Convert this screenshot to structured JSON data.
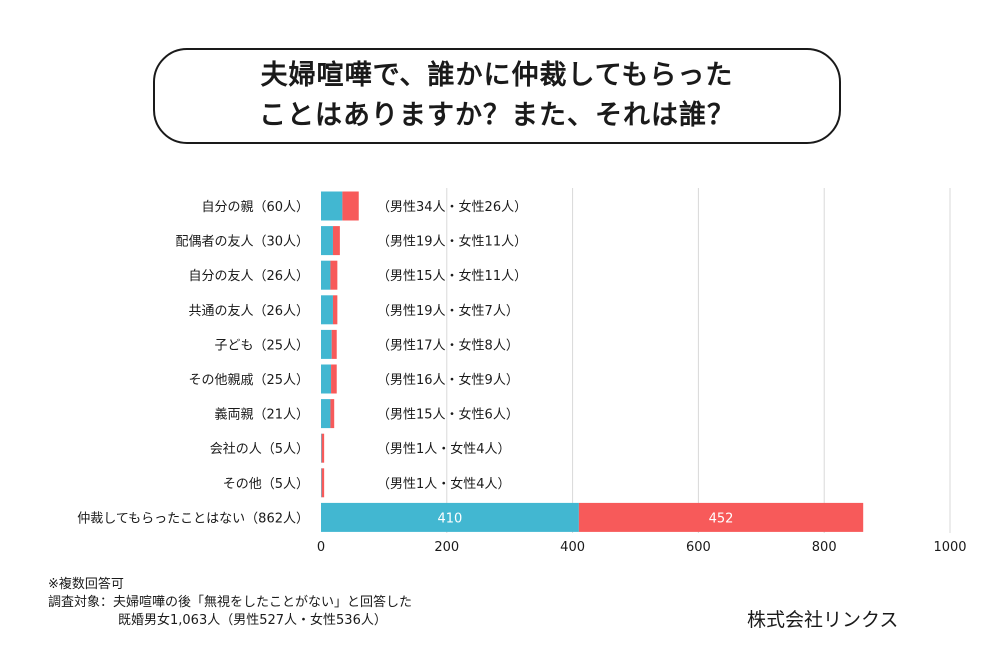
{
  "title": {
    "line1": "夫婦喧嘩で、誰かに仲裁してもらった",
    "line2": "ことはありますか？また、それは誰？"
  },
  "chart_data": {
    "type": "bar",
    "orientation": "horizontal",
    "stacked": true,
    "xlim": [
      0,
      1000
    ],
    "x_ticks": [
      0,
      200,
      400,
      600,
      800,
      1000
    ],
    "grid": true,
    "categories": [
      "自分の親（60人）",
      "配偶者の友人（30人）",
      "自分の友人（26人）",
      "共通の友人（26人）",
      "子ども（25人）",
      "その他親戚（25人）",
      "義両親（21人）",
      "会社の人（5人）",
      "その他（5人）",
      "仲裁してもらったことはない（862人）"
    ],
    "series": [
      {
        "name": "男性",
        "color": "#42b7d1",
        "values": [
          34,
          19,
          15,
          19,
          17,
          16,
          15,
          1,
          1,
          410
        ]
      },
      {
        "name": "女性",
        "color": "#f75a5a",
        "values": [
          26,
          11,
          11,
          7,
          8,
          9,
          6,
          4,
          4,
          452
        ]
      }
    ],
    "annotations": [
      "（男性34人・女性26人）",
      "（男性19人・女性11人）",
      "（男性15人・女性11人）",
      "（男性19人・女性7人）",
      "（男性17人・女性8人）",
      "（男性16人・女性9人）",
      "（男性15人・女性6人）",
      "（男性1人・女性4人）",
      "（男性1人・女性4人）"
    ],
    "data_labels": [
      "410",
      "452"
    ],
    "data_label_index": 9
  },
  "footnote": {
    "line1": "※複数回答可",
    "line2": "調査対象：夫婦喧嘩の後「無視をしたことがない」と回答した",
    "line3": "既婚男女1,063人（男性527人・女性536人）"
  },
  "company": "株式会社リンクス"
}
